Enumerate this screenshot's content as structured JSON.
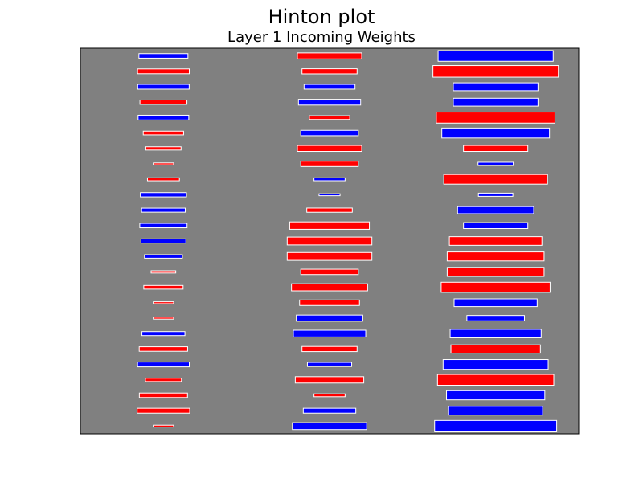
{
  "title": "Hinton plot",
  "chart_data": {
    "type": "heatmap",
    "subtype": "hinton",
    "title": "Layer 1 Incoming Weights",
    "xlabel": "",
    "ylabel": "",
    "grid": false,
    "legend": "none",
    "colors": {
      "background": "#808080",
      "positive": "#0000ff",
      "negative": "#ff0000",
      "edge": "#ffffff"
    },
    "max_weight": 1.0,
    "columns": 3,
    "rows": 25,
    "weights": [
      [
        0.087,
        -0.15,
        0.48
      ],
      [
        -0.097,
        -0.11,
        -0.57
      ],
      [
        0.096,
        0.094,
        0.26
      ],
      [
        -0.08,
        0.14,
        0.26
      ],
      [
        0.093,
        -0.059,
        -0.51
      ],
      [
        -0.059,
        0.12,
        0.42
      ],
      [
        -0.045,
        -0.15,
        -0.15
      ],
      [
        -0.015,
        -0.12,
        0.045
      ],
      [
        -0.037,
        0.035,
        -0.39
      ],
      [
        0.077,
        0.016,
        0.043
      ],
      [
        0.069,
        -0.075,
        0.21
      ],
      [
        0.081,
        -0.23,
        0.15
      ],
      [
        0.073,
        -0.26,
        -0.31
      ],
      [
        0.052,
        -0.26,
        -0.34
      ],
      [
        -0.022,
        -0.12,
        -0.34
      ],
      [
        -0.056,
        -0.21,
        -0.43
      ],
      [
        -0.015,
        -0.13,
        0.25
      ],
      [
        -0.015,
        0.16,
        0.12
      ],
      [
        0.067,
        0.19,
        0.3
      ],
      [
        -0.085,
        -0.11,
        -0.29
      ],
      [
        0.097,
        0.071,
        0.4
      ],
      [
        -0.047,
        -0.17,
        -0.49
      ],
      [
        -0.084,
        -0.035,
        0.35
      ],
      [
        -0.1,
        0.1,
        0.32
      ],
      [
        -0.015,
        0.2,
        0.54
      ]
    ]
  }
}
